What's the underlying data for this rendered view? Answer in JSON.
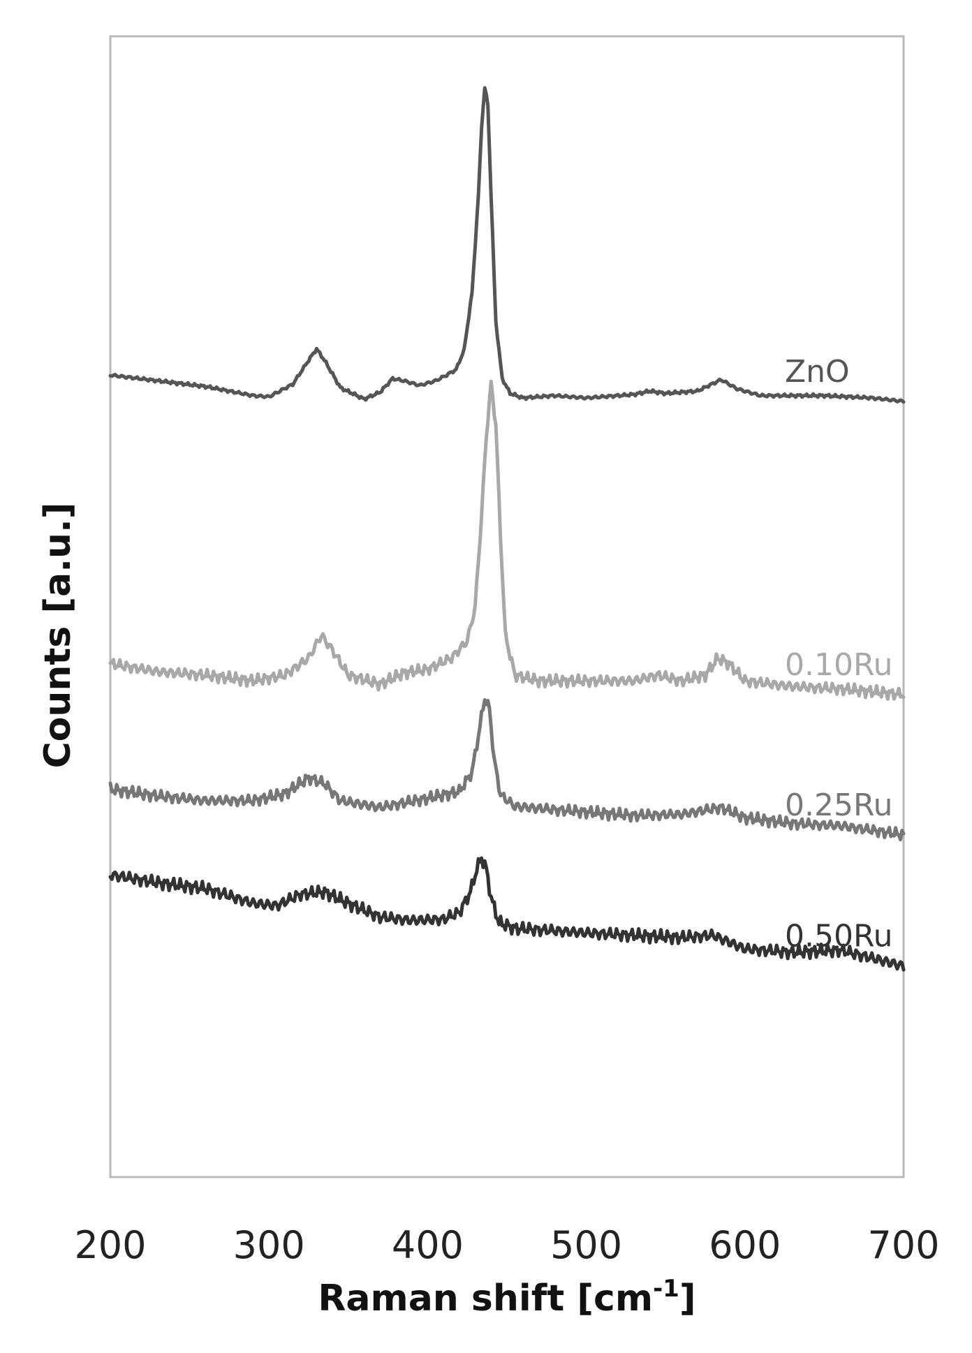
{
  "chart_data": {
    "type": "line",
    "title": "",
    "xlabel": "Raman shift [cm",
    "xlabel_sup": "-1",
    "xlabel_end": "]",
    "ylabel": "Counts [a.u.]",
    "xlim": [
      200,
      700
    ],
    "ylim": [
      0,
      100
    ],
    "xticks": [
      "200",
      "300",
      "400",
      "500",
      "600",
      "700"
    ],
    "grid": false,
    "legend": "inline labels at right end of each trace",
    "series": [
      {
        "name": "ZnO",
        "color": "#555555",
        "noise": 0.15,
        "points": [
          [
            200,
            70.3
          ],
          [
            230,
            69.8
          ],
          [
            260,
            69.3
          ],
          [
            290,
            68.5
          ],
          [
            300,
            68.4
          ],
          [
            315,
            69.5
          ],
          [
            325,
            71.6
          ],
          [
            330,
            72.6
          ],
          [
            335,
            71.6
          ],
          [
            345,
            69.2
          ],
          [
            360,
            68.2
          ],
          [
            370,
            68.8
          ],
          [
            378,
            70.0
          ],
          [
            385,
            69.8
          ],
          [
            395,
            69.4
          ],
          [
            405,
            69.8
          ],
          [
            412,
            70.3
          ],
          [
            418,
            70.8
          ],
          [
            423,
            72.5
          ],
          [
            428,
            77.5
          ],
          [
            432,
            86.0
          ],
          [
            434,
            92.0
          ],
          [
            436,
            95.5
          ],
          [
            438,
            94.0
          ],
          [
            440,
            86.0
          ],
          [
            443,
            75.0
          ],
          [
            447,
            70.0
          ],
          [
            452,
            68.7
          ],
          [
            460,
            68.3
          ],
          [
            480,
            68.5
          ],
          [
            500,
            68.3
          ],
          [
            530,
            68.6
          ],
          [
            540,
            68.9
          ],
          [
            550,
            68.7
          ],
          [
            570,
            68.9
          ],
          [
            585,
            69.9
          ],
          [
            595,
            69.1
          ],
          [
            610,
            68.5
          ],
          [
            650,
            68.5
          ],
          [
            680,
            68.3
          ],
          [
            700,
            68.0
          ]
        ]
      },
      {
        "name": "0.10Ru",
        "color": "#a8a8a8",
        "noise": 0.55,
        "points": [
          [
            200,
            45.0
          ],
          [
            230,
            44.3
          ],
          [
            260,
            44.0
          ],
          [
            290,
            43.5
          ],
          [
            310,
            44.0
          ],
          [
            325,
            45.5
          ],
          [
            333,
            47.5
          ],
          [
            340,
            46.2
          ],
          [
            350,
            44.0
          ],
          [
            370,
            43.2
          ],
          [
            385,
            44.2
          ],
          [
            400,
            44.5
          ],
          [
            415,
            45.5
          ],
          [
            425,
            47.0
          ],
          [
            430,
            50.0
          ],
          [
            434,
            58.0
          ],
          [
            437,
            65.0
          ],
          [
            440,
            69.5
          ],
          [
            443,
            66.0
          ],
          [
            446,
            56.0
          ],
          [
            449,
            47.5
          ],
          [
            455,
            44.0
          ],
          [
            470,
            43.5
          ],
          [
            500,
            43.5
          ],
          [
            530,
            43.5
          ],
          [
            545,
            44.0
          ],
          [
            560,
            43.5
          ],
          [
            575,
            44.0
          ],
          [
            583,
            45.5
          ],
          [
            590,
            45.0
          ],
          [
            600,
            43.5
          ],
          [
            630,
            43.0
          ],
          [
            660,
            42.8
          ],
          [
            700,
            42.3
          ]
        ]
      },
      {
        "name": "0.25Ru",
        "color": "#777777",
        "noise": 0.55,
        "points": [
          [
            200,
            34.0
          ],
          [
            230,
            33.4
          ],
          [
            260,
            33.0
          ],
          [
            290,
            33.0
          ],
          [
            310,
            33.6
          ],
          [
            325,
            35.0
          ],
          [
            335,
            34.5
          ],
          [
            345,
            33.0
          ],
          [
            370,
            32.4
          ],
          [
            400,
            33.2
          ],
          [
            420,
            33.8
          ],
          [
            428,
            35.5
          ],
          [
            433,
            39.5
          ],
          [
            436,
            42.0
          ],
          [
            439,
            41.0
          ],
          [
            442,
            36.5
          ],
          [
            446,
            33.5
          ],
          [
            455,
            32.5
          ],
          [
            480,
            32.2
          ],
          [
            500,
            32.0
          ],
          [
            530,
            31.7
          ],
          [
            560,
            31.8
          ],
          [
            585,
            32.4
          ],
          [
            600,
            31.5
          ],
          [
            630,
            31.0
          ],
          [
            660,
            30.8
          ],
          [
            700,
            30.0
          ]
        ]
      },
      {
        "name": "0.50Ru",
        "color": "#333333",
        "noise": 0.6,
        "points": [
          [
            200,
            26.5
          ],
          [
            230,
            25.8
          ],
          [
            260,
            25.3
          ],
          [
            290,
            24.0
          ],
          [
            305,
            23.8
          ],
          [
            320,
            24.8
          ],
          [
            335,
            25.0
          ],
          [
            350,
            24.0
          ],
          [
            370,
            22.8
          ],
          [
            390,
            22.5
          ],
          [
            410,
            22.6
          ],
          [
            420,
            23.2
          ],
          [
            427,
            25.0
          ],
          [
            431,
            27.0
          ],
          [
            434,
            28.0
          ],
          [
            437,
            27.0
          ],
          [
            440,
            24.5
          ],
          [
            445,
            22.3
          ],
          [
            455,
            21.8
          ],
          [
            480,
            21.6
          ],
          [
            500,
            21.4
          ],
          [
            530,
            21.2
          ],
          [
            560,
            21.0
          ],
          [
            580,
            21.2
          ],
          [
            600,
            20.0
          ],
          [
            630,
            19.7
          ],
          [
            660,
            19.9
          ],
          [
            700,
            18.5
          ]
        ]
      }
    ]
  }
}
